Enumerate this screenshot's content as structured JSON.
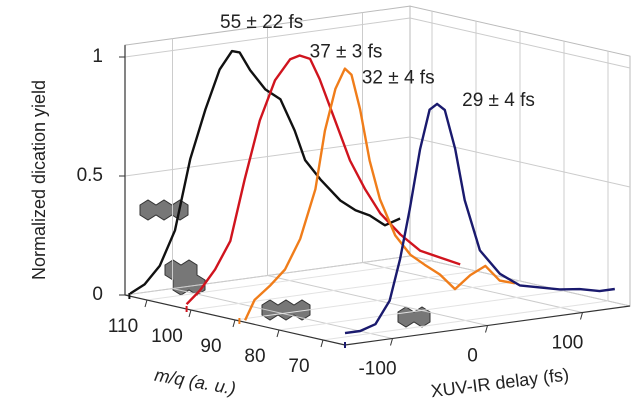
{
  "chart_data": {
    "type": "waterfall3d",
    "ylabel": "Normalized dication yield",
    "zlabel": "m/q (a. u.)",
    "xlabel": "XUV-IR delay (fs)",
    "xlim": [
      -150,
      150
    ],
    "xticks": [
      -100,
      0,
      100
    ],
    "ylim": [
      0,
      1.05
    ],
    "yticks": [
      0,
      0.5,
      1
    ],
    "zlim": [
      115,
      65
    ],
    "zticks": [
      110,
      100,
      90,
      80,
      70
    ],
    "grid": true,
    "series": [
      {
        "name": "55 ± 22 fs",
        "color": "#111111",
        "z": 114,
        "x": [
          -149,
          -134,
          -118,
          -102,
          -86,
          -70,
          -55,
          -42,
          -34,
          -23,
          -7,
          9,
          24,
          35,
          51,
          72,
          88,
          103,
          119,
          135
        ],
        "values": [
          0.01,
          0.04,
          0.11,
          0.25,
          0.54,
          0.74,
          0.9,
          0.97,
          0.96,
          0.88,
          0.79,
          0.74,
          0.6,
          0.47,
          0.38,
          0.28,
          0.23,
          0.2,
          0.15,
          0.17
        ]
      },
      {
        "name": "37 ± 3 fs",
        "color": "#d0141e",
        "z": 101,
        "x": [
          -150,
          -136,
          -120,
          -104,
          -89,
          -73,
          -57,
          -41,
          -31,
          -20,
          -10,
          6,
          22,
          38,
          54,
          75,
          96,
          117,
          138
        ],
        "values": [
          0.02,
          0.07,
          0.15,
          0.26,
          0.51,
          0.75,
          0.91,
          0.99,
          1.0,
          0.98,
          0.89,
          0.71,
          0.53,
          0.4,
          0.29,
          0.19,
          0.11,
          0.07,
          0.03
        ]
      },
      {
        "name": "32 ± 4 fs",
        "color": "#f07d1a",
        "z": 89,
        "x": [
          -144,
          -134,
          -118,
          -102,
          -86,
          -70,
          -60,
          -49,
          -39,
          -32,
          -23,
          -13,
          -2,
          14,
          30,
          45,
          61,
          77,
          93,
          109,
          124,
          140
        ],
        "values": [
          0.0,
          0.08,
          0.13,
          0.19,
          0.31,
          0.51,
          0.75,
          0.92,
          1.0,
          0.97,
          0.82,
          0.6,
          0.43,
          0.27,
          0.18,
          0.13,
          0.08,
          0.01,
          0.06,
          0.09,
          0.02,
          0.0
        ]
      },
      {
        "name": "29 ± 4 fs",
        "color": "#1a1a6e",
        "z": 65,
        "x": [
          -150,
          -134,
          -118,
          -103,
          -92,
          -82,
          -71,
          -61,
          -53,
          -45,
          -34,
          -24,
          -8,
          13,
          34,
          55,
          76,
          97,
          118,
          134
        ],
        "values": [
          0.05,
          0.05,
          0.07,
          0.16,
          0.33,
          0.53,
          0.78,
          0.94,
          0.96,
          0.93,
          0.76,
          0.54,
          0.32,
          0.21,
          0.15,
          0.13,
          0.11,
          0.1,
          0.08,
          0.08
        ]
      }
    ]
  }
}
